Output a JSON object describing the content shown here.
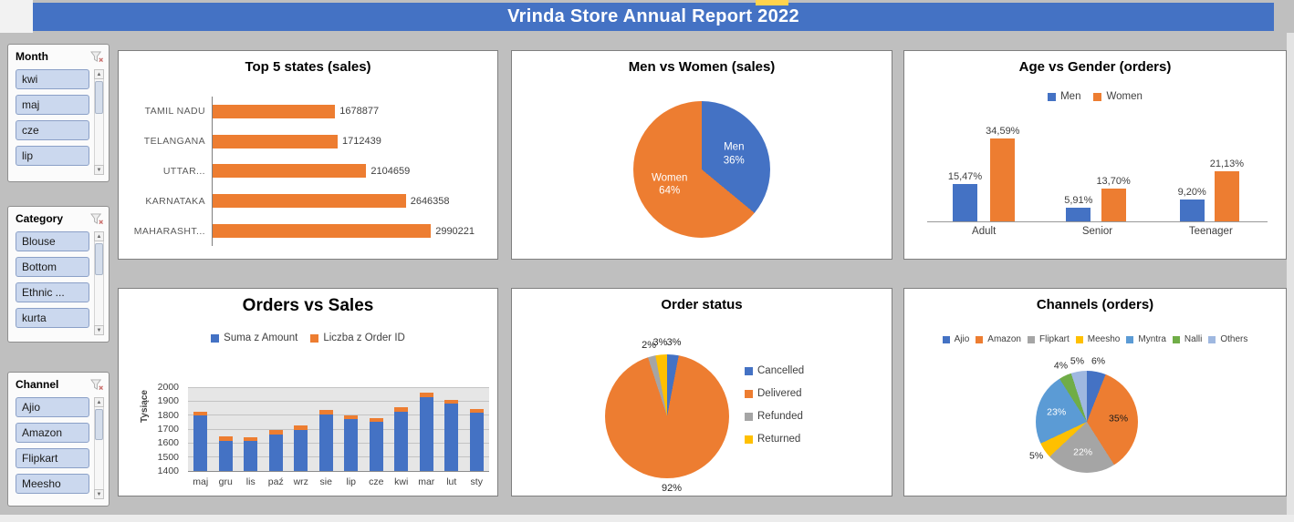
{
  "page": {
    "title": "Vrinda Store Annual Report 2022"
  },
  "colors": {
    "title_bar": "#4472C4",
    "accent_yellow": "#FFD34D",
    "background": "#BFBFBF",
    "series_blue": "#4472C4",
    "series_orange": "#ED7D31",
    "series_gray": "#A5A5A5",
    "series_yellow": "#FFC000",
    "series_lightblue": "#5B9BD5",
    "series_green": "#70AD47",
    "series_paleblue": "#9FB8E0"
  },
  "icons": {
    "clear_filter": "funnel-x",
    "scroll_up": "▲",
    "scroll_down": "▼"
  },
  "slicers": [
    {
      "title": "Month",
      "items": [
        "kwi",
        "maj",
        "cze",
        "lip"
      ]
    },
    {
      "title": "Category",
      "items": [
        "Blouse",
        "Bottom",
        "Ethnic ...",
        "kurta"
      ]
    },
    {
      "title": "Channel",
      "items": [
        "Ajio",
        "Amazon",
        "Flipkart",
        "Meesho"
      ]
    }
  ],
  "chart_data": [
    {
      "id": "top5-states",
      "type": "bar",
      "orientation": "horizontal",
      "title": "Top 5 states (sales)",
      "categories": [
        "TAMIL NADU",
        "TELANGANA",
        "UTTAR...",
        "KARNATAKA",
        "MAHARASHT..."
      ],
      "values": [
        1678877,
        1712439,
        2104659,
        2646358,
        2990221
      ],
      "color": "#ED7D31",
      "axis_max": 3800000
    },
    {
      "id": "men-vs-women",
      "type": "pie",
      "title": "Men vs Women (sales)",
      "slices": [
        {
          "label": "Men",
          "pct": 36,
          "color": "#4472C4"
        },
        {
          "label": "Women",
          "pct": 64,
          "color": "#ED7D31"
        }
      ]
    },
    {
      "id": "age-vs-gender",
      "type": "bar",
      "title": "Age vs Gender (orders)",
      "categories": [
        "Adult",
        "Senior",
        "Teenager"
      ],
      "ylim": [
        0,
        40
      ],
      "legend_position": "top",
      "series": [
        {
          "name": "Men",
          "color": "#4472C4",
          "values": [
            15.47,
            5.91,
            9.2
          ],
          "labels": [
            "15,47%",
            "5,91%",
            "9,20%"
          ]
        },
        {
          "name": "Women",
          "color": "#ED7D31",
          "values": [
            34.59,
            13.7,
            21.13
          ],
          "labels": [
            "34,59%",
            "13,70%",
            "21,13%"
          ]
        }
      ]
    },
    {
      "id": "orders-vs-sales",
      "type": "bar",
      "title": "Orders vs Sales",
      "ylabel": "Tysiące",
      "ylim": [
        1400,
        2000
      ],
      "yticks": [
        1400,
        1500,
        1600,
        1700,
        1800,
        1900,
        2000
      ],
      "legend_position": "top",
      "categories": [
        "maj",
        "gru",
        "lis",
        "paź",
        "wrz",
        "sie",
        "lip",
        "cze",
        "kwi",
        "mar",
        "lut",
        "sty"
      ],
      "series": [
        {
          "name": "Suma z Amount",
          "color": "#4472C4",
          "values": [
            1800,
            1620,
            1615,
            1665,
            1700,
            1810,
            1775,
            1755,
            1830,
            1935,
            1885,
            1820
          ]
        },
        {
          "name": "Liczba z Order ID",
          "color": "#ED7D31",
          "values": [
            1830,
            1650,
            1645,
            1695,
            1730,
            1840,
            1805,
            1785,
            1860,
            1965,
            1915,
            1850
          ]
        }
      ]
    },
    {
      "id": "order-status",
      "type": "pie",
      "title": "Order status",
      "legend_position": "right",
      "slices": [
        {
          "label": "Cancelled",
          "pct": 3,
          "color": "#4472C4"
        },
        {
          "label": "Delivered",
          "pct": 92,
          "color": "#ED7D31"
        },
        {
          "label": "Refunded",
          "pct": 2,
          "color": "#A5A5A5"
        },
        {
          "label": "Returned",
          "pct": 3,
          "color": "#FFC000"
        }
      ]
    },
    {
      "id": "channels",
      "type": "pie",
      "title": "Channels (orders)",
      "legend_position": "top",
      "slices": [
        {
          "label": "Ajio",
          "pct": 6,
          "color": "#4472C4"
        },
        {
          "label": "Amazon",
          "pct": 35,
          "color": "#ED7D31",
          "label_color": "#1a1a1a"
        },
        {
          "label": "Flipkart",
          "pct": 22,
          "color": "#A5A5A5"
        },
        {
          "label": "Meesho",
          "pct": 5,
          "color": "#FFC000"
        },
        {
          "label": "Myntra",
          "pct": 23,
          "color": "#5B9BD5"
        },
        {
          "label": "Nalli",
          "pct": 4,
          "color": "#70AD47"
        },
        {
          "label": "Others",
          "pct": 5,
          "color": "#9FB8E0"
        }
      ]
    }
  ]
}
